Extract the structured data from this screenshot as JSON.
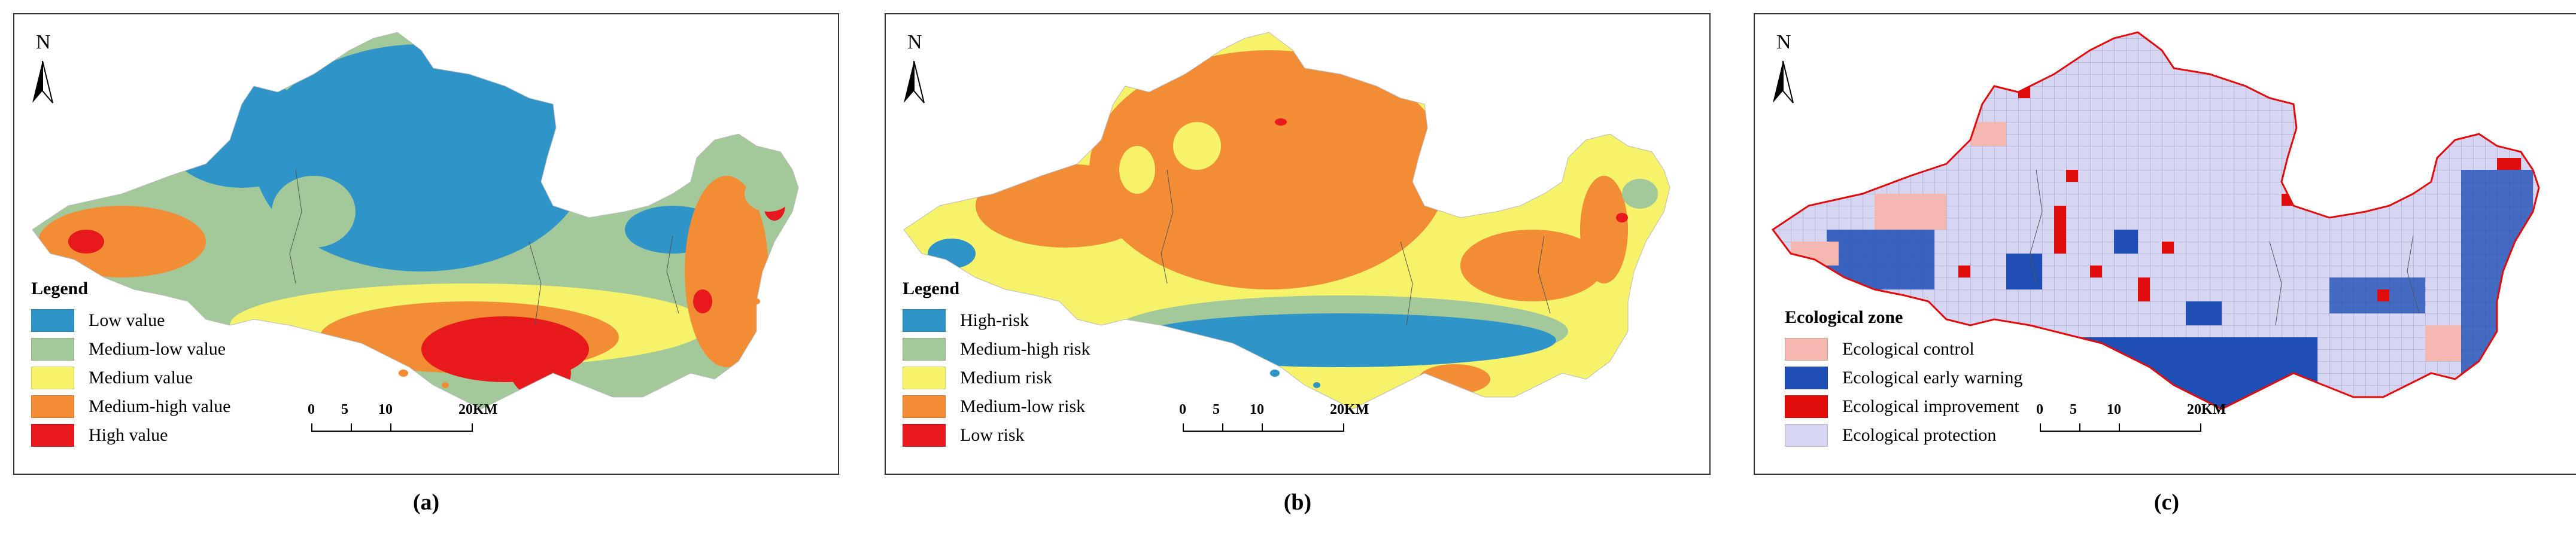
{
  "north_label": "N",
  "panels": {
    "a": {
      "caption": "(a)",
      "legend_title": "Legend",
      "legend": [
        {
          "label": "Low value",
          "color": "#2f94c8"
        },
        {
          "label": "Medium-low value",
          "color": "#a3c99a"
        },
        {
          "label": "Medium value",
          "color": "#f6f26a"
        },
        {
          "label": "Medium-high value",
          "color": "#f28c35"
        },
        {
          "label": "High value",
          "color": "#e8191c"
        }
      ]
    },
    "b": {
      "caption": "(b)",
      "legend_title": "Legend",
      "legend": [
        {
          "label": "High-risk",
          "color": "#2f94c8"
        },
        {
          "label": "Medium-high risk",
          "color": "#a3c99a"
        },
        {
          "label": "Medium risk",
          "color": "#f6f26a"
        },
        {
          "label": "Medium-low risk",
          "color": "#f28c35"
        },
        {
          "label": "Low risk",
          "color": "#e8191c"
        }
      ]
    },
    "c": {
      "caption": "(c)",
      "legend_title": "Ecological zone",
      "legend": [
        {
          "label": "Ecological control",
          "color": "#f4b8b0"
        },
        {
          "label": "Ecological early warning",
          "color": "#1f4fb5"
        },
        {
          "label": "Ecological improvement",
          "color": "#e00b0b"
        },
        {
          "label": "Ecological protection",
          "color": "#d6d6f3"
        }
      ]
    }
  },
  "scale": {
    "ticks": [
      "0",
      "5",
      "10",
      "20KM"
    ]
  }
}
